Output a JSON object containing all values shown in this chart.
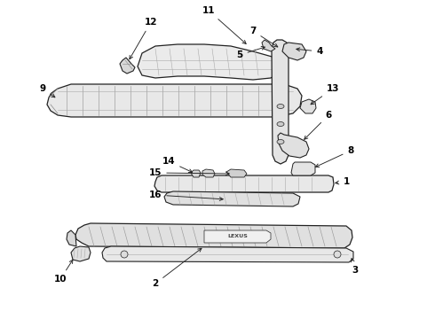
{
  "bg_color": "#ffffff",
  "line_color": "#222222",
  "fill_light": "#f0f0f0",
  "fill_mid": "#e0e0e0",
  "fill_dark": "#cccccc",
  "label_fontsize": 7.5,
  "arrow_lw": 0.7,
  "parts_lw": 0.8
}
